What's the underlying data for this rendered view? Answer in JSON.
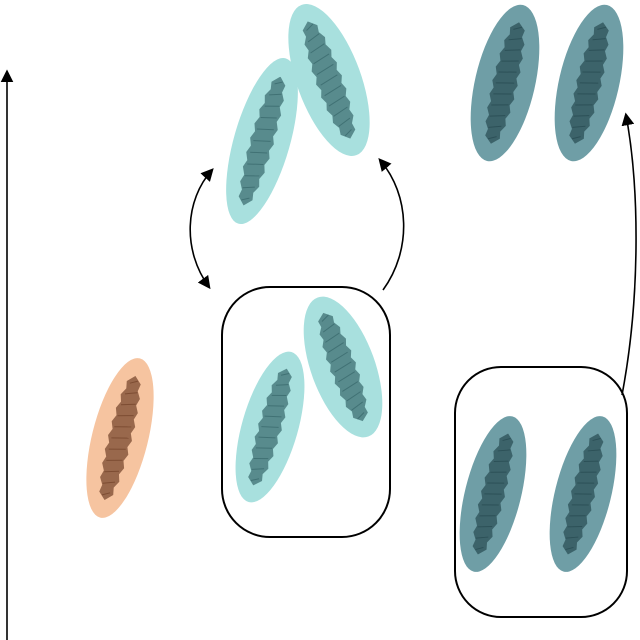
{
  "diagram": {
    "colors": {
      "background": "#ffffff",
      "orange_body": "#f6c4a0",
      "orange_core": "#7a4a30",
      "light_teal_body": "#a8e0de",
      "light_teal_core": "#3e6f72",
      "dark_teal_body": "#6f9ea6",
      "dark_teal_core": "#2b4f56",
      "line": "#000000"
    },
    "groups": [
      {
        "id": "single-orange",
        "variant": "orange",
        "framed": false
      },
      {
        "id": "pair-light-framed",
        "variant": "light_teal",
        "framed": true
      },
      {
        "id": "pair-light-top",
        "variant": "light_teal",
        "framed": false
      },
      {
        "id": "pair-dark-framed",
        "variant": "dark_teal",
        "framed": true
      },
      {
        "id": "pair-dark-top",
        "variant": "dark_teal",
        "framed": false
      }
    ],
    "arrows": [
      {
        "id": "vertical-axis-arrow",
        "kind": "single"
      },
      {
        "id": "light-pair-transition-arrow",
        "kind": "single"
      },
      {
        "id": "light-pair-double-arrow",
        "kind": "double"
      },
      {
        "id": "dark-pair-transition-arrow",
        "kind": "single"
      }
    ]
  }
}
